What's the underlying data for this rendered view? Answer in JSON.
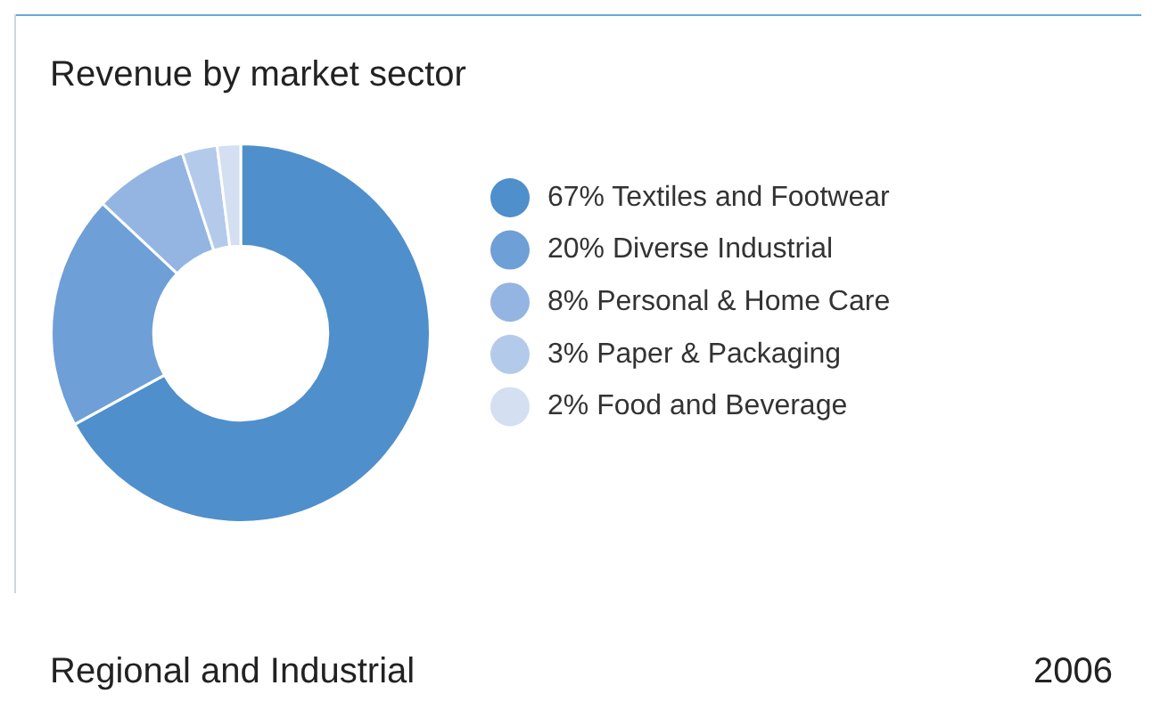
{
  "chart_data": {
    "type": "donut",
    "title": "Revenue by market sector",
    "categories": [
      "Textiles and Footwear",
      "Diverse Industrial",
      "Personal & Home Care",
      "Paper & Packaging",
      "Food and Beverage"
    ],
    "values": [
      67,
      20,
      8,
      3,
      2
    ],
    "value_labels": [
      "67%",
      "20%",
      "8%",
      "3%",
      "2%"
    ],
    "colors": [
      "#4f8fcc",
      "#6e9fd7",
      "#94b5e2",
      "#b4caeb",
      "#d4dff2"
    ],
    "legend": "right",
    "annotations": [
      "Regional and Industrial",
      "2006"
    ]
  }
}
